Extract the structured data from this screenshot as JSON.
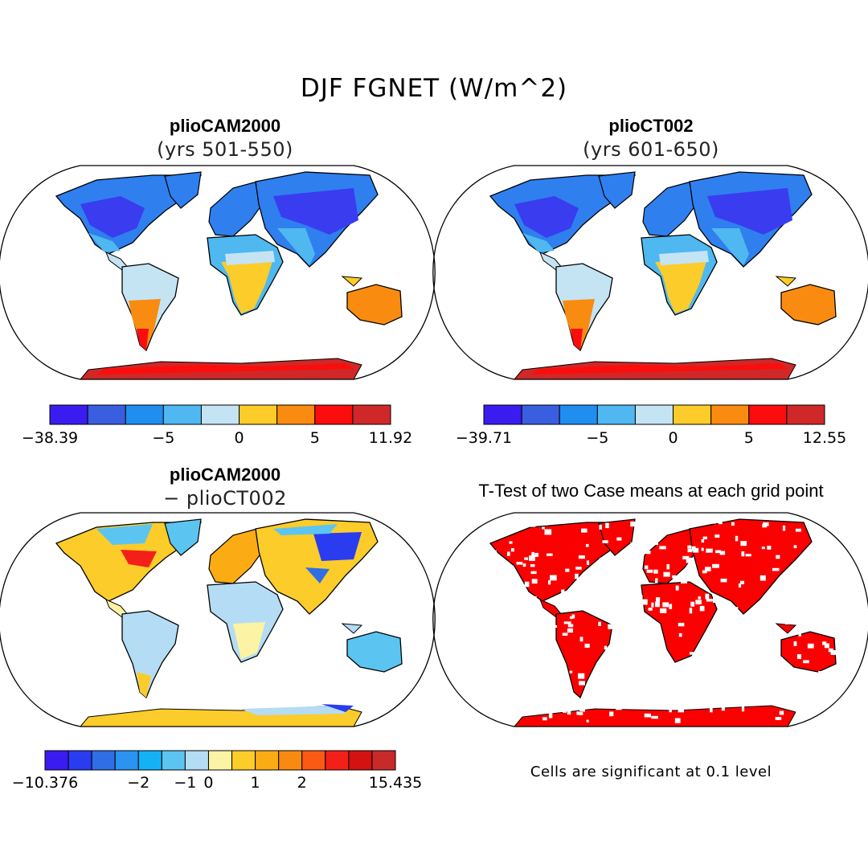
{
  "main_title": "DJF FGNET (W/m^2)",
  "panels": [
    {
      "title": "plioCAM2000",
      "subtitle": "(yrs 501-550)"
    },
    {
      "title": "plioCT002",
      "subtitle": "(yrs 601-650)"
    },
    {
      "title": "plioCAM2000",
      "subtitle": "− plioCT002"
    },
    {
      "title": "T-Test of two Case means at each grid point",
      "subtitle": ""
    }
  ],
  "colorbars": [
    {
      "colors": [
        "#3b1cf0",
        "#3a5ee0",
        "#1f8ef0",
        "#4fb8f0",
        "#c4e4f4",
        "#fbcc2a",
        "#f98c10",
        "#fb0d0d",
        "#d02828"
      ],
      "ticks": [
        {
          "label": "−38.39",
          "at": 0
        },
        {
          "label": "−5",
          "at": 3
        },
        {
          "label": "0",
          "at": 5
        },
        {
          "label": "5",
          "at": 7
        },
        {
          "label": "11.92",
          "at": 9
        }
      ]
    },
    {
      "colors": [
        "#3b1cf0",
        "#3a5ee0",
        "#1f8ef0",
        "#4fb8f0",
        "#c4e4f4",
        "#fbcc2a",
        "#f98c10",
        "#fb0d0d",
        "#d02828"
      ],
      "ticks": [
        {
          "label": "−39.71",
          "at": 0
        },
        {
          "label": "−5",
          "at": 3
        },
        {
          "label": "0",
          "at": 5
        },
        {
          "label": "5",
          "at": 7
        },
        {
          "label": "12.55",
          "at": 9
        }
      ]
    },
    {
      "colors": [
        "#3b1cf0",
        "#2a3cf0",
        "#2f6ee4",
        "#2b93f0",
        "#14b2f4",
        "#5cc4f0",
        "#b4dcf4",
        "#fcf4a4",
        "#fbcc2a",
        "#fbab14",
        "#f98a10",
        "#fb5a14",
        "#f3201a",
        "#d41212",
        "#c82a2a"
      ],
      "ticks": [
        {
          "label": "−10.376",
          "at": 0
        },
        {
          "label": "−2",
          "at": 4
        },
        {
          "label": "−1",
          "at": 6
        },
        {
          "label": "0",
          "at": 7
        },
        {
          "label": "1",
          "at": 9
        },
        {
          "label": "2",
          "at": 11
        },
        {
          "label": "15.435",
          "at": 15
        }
      ]
    }
  ],
  "note": "Cells are significant at 0.1 level"
}
